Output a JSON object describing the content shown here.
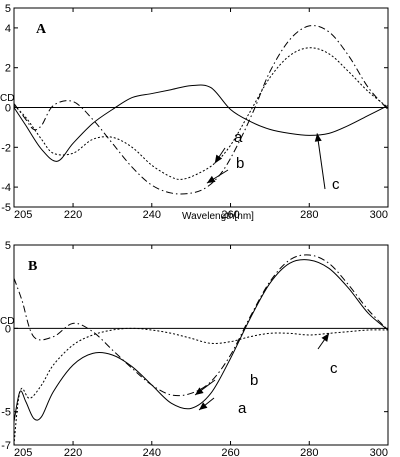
{
  "chart_data": [
    {
      "type": "line",
      "panel": "A",
      "xlabel": "Wavelength[nm]",
      "ylabel": "CD",
      "xlim": [
        205,
        300
      ],
      "ylim": [
        -5,
        5
      ],
      "xticks": [
        205,
        220,
        240,
        260,
        280,
        300
      ],
      "yticks": [
        5,
        4,
        2,
        0,
        -2,
        -4,
        -5
      ],
      "zero_line": true,
      "series": [
        {
          "name": "a",
          "style": "dotted",
          "x": [
            205,
            208,
            212,
            215,
            220,
            225,
            230,
            235,
            240,
            245,
            248,
            252,
            256,
            260,
            265,
            270,
            275,
            280,
            285,
            290,
            295,
            300
          ],
          "y": [
            0.1,
            -0.5,
            -1.6,
            -2.3,
            -2.3,
            -1.6,
            -1.5,
            -2.0,
            -2.9,
            -3.5,
            -3.6,
            -3.3,
            -2.8,
            -1.9,
            -0.2,
            1.5,
            2.6,
            3.0,
            2.7,
            1.8,
            0.8,
            0.0
          ]
        },
        {
          "name": "b",
          "style": "dashdot",
          "x": [
            205,
            208,
            210,
            212,
            215,
            220,
            225,
            230,
            235,
            240,
            245,
            250,
            254,
            258,
            262,
            266,
            270,
            275,
            280,
            285,
            290,
            295,
            300
          ],
          "y": [
            0.2,
            -0.6,
            -1.1,
            -0.9,
            0.1,
            0.3,
            -0.6,
            -1.8,
            -3.0,
            -3.9,
            -4.3,
            -4.3,
            -4.0,
            -3.2,
            -1.8,
            -0.1,
            1.8,
            3.4,
            4.1,
            3.8,
            2.6,
            1.0,
            -0.1
          ]
        },
        {
          "name": "c",
          "style": "solid",
          "x": [
            205,
            208,
            212,
            216,
            220,
            225,
            230,
            235,
            240,
            245,
            250,
            255,
            260,
            265,
            270,
            275,
            280,
            285,
            290,
            295,
            300
          ],
          "y": [
            0.0,
            -0.9,
            -2.1,
            -2.7,
            -1.8,
            -0.8,
            -0.1,
            0.5,
            0.7,
            0.9,
            1.1,
            1.0,
            -0.1,
            -0.7,
            -1.1,
            -1.3,
            -1.4,
            -1.3,
            -0.9,
            -0.4,
            0.1
          ]
        }
      ],
      "annotations": [
        {
          "text": "a",
          "points_to": [
            256,
            -2.8
          ]
        },
        {
          "text": "b",
          "points_to": [
            254,
            -3.8
          ]
        },
        {
          "text": "c",
          "points_to": [
            282,
            -1.3
          ]
        }
      ]
    },
    {
      "type": "line",
      "panel": "B",
      "xlabel": "",
      "ylabel": "CD",
      "xlim": [
        205,
        300
      ],
      "ylim": [
        -7,
        5
      ],
      "xticks": [
        205,
        220,
        240,
        260,
        280,
        300
      ],
      "yticks": [
        5,
        0,
        -5,
        -7
      ],
      "zero_line": true,
      "series": [
        {
          "name": "a",
          "style": "solid",
          "x": [
            205,
            206.5,
            208,
            210,
            212,
            215,
            220,
            225,
            230,
            235,
            240,
            245,
            250,
            255,
            260,
            265,
            270,
            275,
            280,
            285,
            290,
            295,
            300
          ],
          "y": [
            -5.6,
            -3.8,
            -4.4,
            -5.4,
            -5.3,
            -3.8,
            -2.2,
            -1.5,
            -1.6,
            -2.3,
            -3.4,
            -4.5,
            -4.8,
            -3.9,
            -1.8,
            0.6,
            2.7,
            3.9,
            4.1,
            3.6,
            2.4,
            0.9,
            -0.1
          ]
        },
        {
          "name": "b",
          "style": "dashdot",
          "x": [
            205,
            207,
            210,
            215,
            220,
            225,
            230,
            235,
            240,
            245,
            250,
            255,
            260,
            265,
            270,
            275,
            280,
            285,
            290,
            295,
            300
          ],
          "y": [
            3.0,
            1.7,
            -0.5,
            -0.5,
            0.3,
            -0.2,
            -1.3,
            -2.4,
            -3.4,
            -4.0,
            -3.9,
            -3.2,
            -1.6,
            0.7,
            2.8,
            4.1,
            4.4,
            3.9,
            2.6,
            1.1,
            -0.1
          ]
        },
        {
          "name": "c",
          "style": "dotted",
          "x": [
            205,
            206,
            207,
            209,
            212,
            215,
            220,
            225,
            230,
            235,
            240,
            245,
            250,
            255,
            260,
            265,
            270,
            275,
            280,
            285,
            290,
            295,
            300
          ],
          "y": [
            -7.0,
            -4.5,
            -3.6,
            -4.2,
            -3.4,
            -2.2,
            -1.0,
            -0.4,
            -0.1,
            0.0,
            -0.1,
            -0.3,
            -0.6,
            -0.9,
            -0.8,
            -0.5,
            -0.3,
            -0.3,
            -0.4,
            -0.3,
            -0.2,
            -0.1,
            -0.1
          ]
        }
      ],
      "annotations": [
        {
          "text": "a",
          "points_to": [
            252,
            -4.9
          ]
        },
        {
          "text": "b",
          "points_to": [
            251,
            -4.0
          ]
        },
        {
          "text": "c",
          "points_to": [
            285,
            -0.3
          ]
        }
      ]
    }
  ]
}
